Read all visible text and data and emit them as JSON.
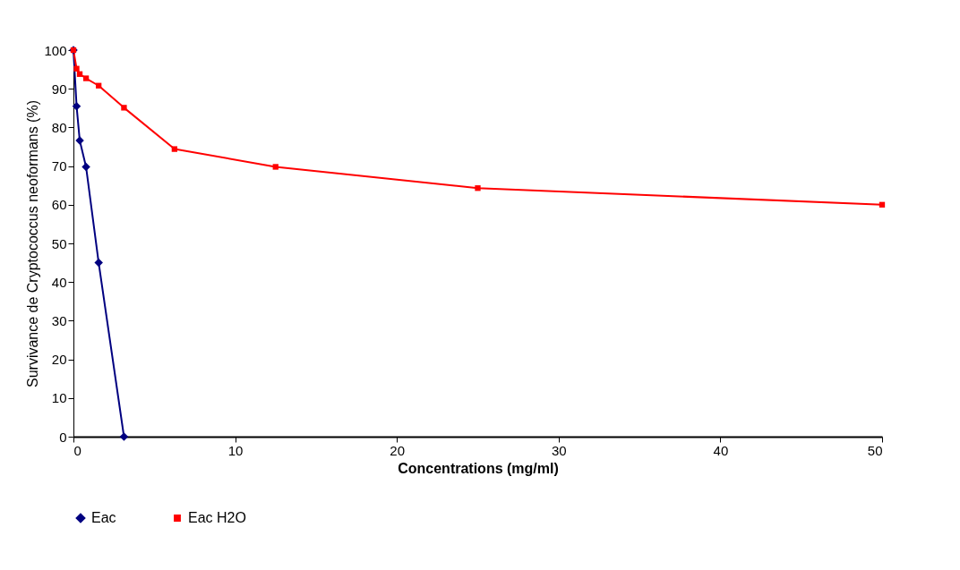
{
  "chart_data": {
    "type": "line",
    "xlabel": "Concentrations (mg/ml)",
    "ylabel": "Survivance de Cryptococcus neoformans (%)",
    "x": [
      0,
      0.195,
      0.39,
      0.78,
      1.56,
      3.125,
      6.25,
      12.5,
      25,
      50
    ],
    "series": [
      {
        "name": "Eac",
        "color": "#000080",
        "marker": "diamond",
        "x": [
          0,
          0.195,
          0.39,
          0.78,
          1.56,
          3.125
        ],
        "values": [
          100,
          85.5,
          76.6,
          69.8,
          45,
          0
        ]
      },
      {
        "name": "Eac H2O",
        "color": "#ff0000",
        "marker": "square",
        "values": [
          100,
          95.2,
          93.8,
          92.7,
          90.8,
          85.1,
          74.4,
          69.8,
          64.3,
          60
        ]
      }
    ],
    "xlim": [
      0,
      50
    ],
    "xticks": [
      0,
      10,
      20,
      30,
      40,
      50
    ],
    "ylim": [
      0,
      100
    ],
    "yticks": [
      0,
      10,
      20,
      30,
      40,
      50,
      60,
      70,
      80,
      90,
      100
    ],
    "grid": false,
    "legend": "bottom"
  }
}
